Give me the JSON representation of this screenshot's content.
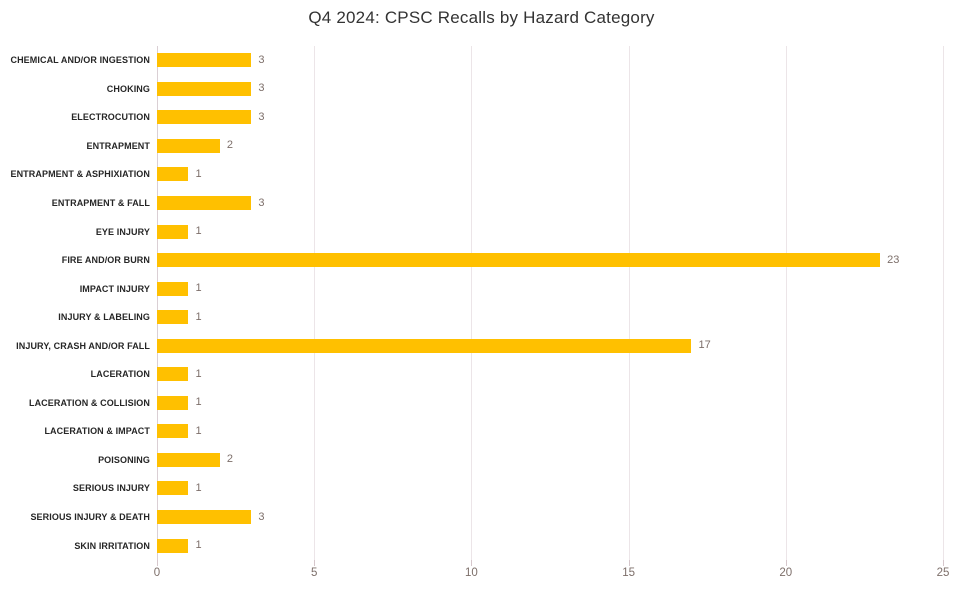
{
  "chart_data": {
    "type": "bar",
    "orientation": "horizontal",
    "title": "Q4 2024: CPSC Recalls by Hazard Category",
    "categories": [
      "CHEMICAL AND/OR INGESTION",
      "CHOKING",
      "ELECTROCUTION",
      "ENTRAPMENT",
      "ENTRAPMENT & ASPHIXIATION",
      "ENTRAPMENT & FALL",
      "EYE INJURY",
      "FIRE AND/OR BURN",
      "IMPACT INJURY",
      "INJURY & LABELING",
      "INJURY, CRASH AND/OR FALL",
      "LACERATION",
      "LACERATION & COLLISION",
      "LACERATION & IMPACT",
      "POISONING",
      "SERIOUS INJURY",
      "SERIOUS INJURY & DEATH",
      "SKIN IRRITATION"
    ],
    "values": [
      3,
      3,
      3,
      2,
      1,
      3,
      1,
      23,
      1,
      1,
      17,
      1,
      1,
      1,
      2,
      1,
      3,
      1
    ],
    "data_labels": [
      3,
      3,
      3,
      2,
      1,
      3,
      1,
      23,
      1,
      1,
      17,
      1,
      1,
      1,
      2,
      1,
      3,
      1
    ],
    "xlabel": "",
    "ylabel": "",
    "xlim": [
      0,
      25
    ],
    "xticks": [
      0,
      5,
      10,
      15,
      20,
      25
    ],
    "grid": true,
    "legend": false,
    "colors": {
      "bar": "#FFC000",
      "title": "#333333",
      "category_label": "#262626",
      "value_label": "#7d6f6a",
      "tick_label": "#7d6f6a",
      "gridline": "#ece5e8",
      "axis_line": "#dacfd4",
      "background": "#ffffff"
    }
  }
}
